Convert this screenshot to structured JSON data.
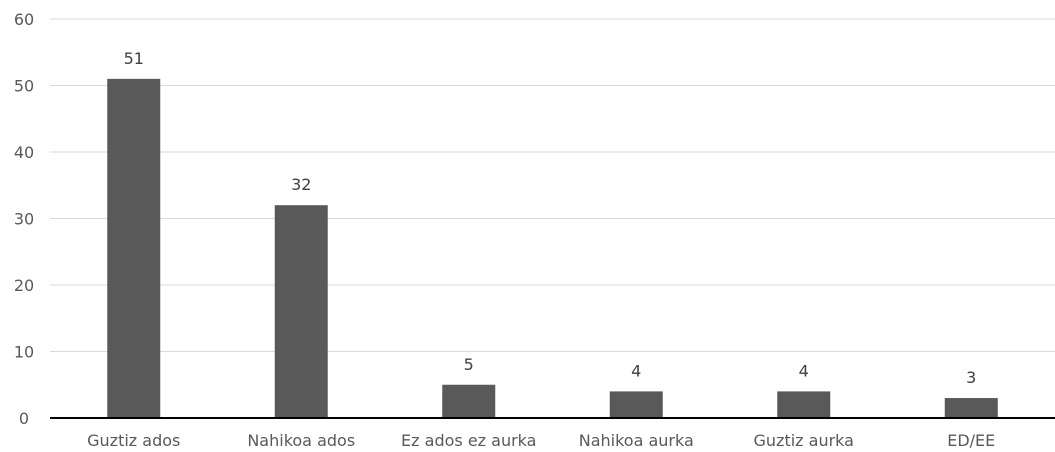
{
  "chart_data": {
    "type": "bar",
    "categories": [
      "Guztiz ados",
      "Nahikoa ados",
      "Ez ados ez aurka",
      "Nahikoa aurka",
      "Guztiz aurka",
      "ED/EE"
    ],
    "values": [
      51,
      32,
      5,
      4,
      4,
      3
    ],
    "data_labels": [
      "51",
      "32",
      "5",
      "4",
      "4",
      "3"
    ],
    "title": "",
    "xlabel": "",
    "ylabel": "",
    "ylim": [
      0,
      60
    ],
    "yticks": [
      "0",
      "10",
      "20",
      "30",
      "40",
      "50",
      "60"
    ],
    "grid": true,
    "legend": "none",
    "bar_color": "#595959"
  }
}
